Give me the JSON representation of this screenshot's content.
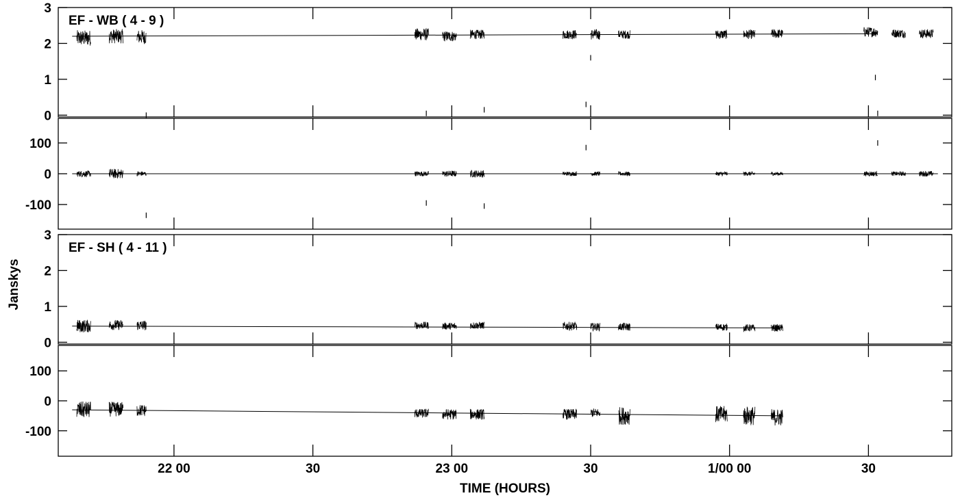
{
  "chart_data": {
    "type": "line",
    "xlabel": "TIME (HOURS)",
    "ylabel": "Janskys",
    "x_ticks": [
      {
        "t": 0,
        "label": "22 00"
      },
      {
        "t": 30,
        "label": "30"
      },
      {
        "t": 60,
        "label": "23 00"
      },
      {
        "t": 90,
        "label": "30"
      },
      {
        "t": 120,
        "label": "1/00 00"
      },
      {
        "t": 150,
        "label": "30"
      }
    ],
    "xlim": [
      -25,
      168
    ],
    "panels": [
      {
        "title": "EF - WB ( 4 - 9 )",
        "quantity": "amplitude",
        "ylim": [
          -0.05,
          3.0
        ],
        "yticks": [
          "0",
          "1",
          "2",
          "3"
        ],
        "model": {
          "t": [
            -22,
            152
          ],
          "y": [
            2.2,
            2.27
          ]
        },
        "scans": [
          {
            "t": [
              -21,
              -18
            ],
            "mean": 2.15,
            "noise": 0.22
          },
          {
            "t": [
              -14,
              -11
            ],
            "mean": 2.2,
            "noise": 0.2
          },
          {
            "t": [
              -8,
              -6
            ],
            "mean": 2.18,
            "noise": 0.2
          },
          {
            "t": [
              52,
              55
            ],
            "mean": 2.25,
            "noise": 0.17
          },
          {
            "t": [
              58,
              61
            ],
            "mean": 2.2,
            "noise": 0.15
          },
          {
            "t": [
              64,
              67
            ],
            "mean": 2.25,
            "noise": 0.13
          },
          {
            "t": [
              84,
              87
            ],
            "mean": 2.25,
            "noise": 0.13
          },
          {
            "t": [
              90,
              92
            ],
            "mean": 2.25,
            "noise": 0.15
          },
          {
            "t": [
              96,
              98.5
            ],
            "mean": 2.25,
            "noise": 0.12
          },
          {
            "t": [
              117,
              119.5
            ],
            "mean": 2.25,
            "noise": 0.13
          },
          {
            "t": [
              123,
              125.5
            ],
            "mean": 2.25,
            "noise": 0.13
          },
          {
            "t": [
              129,
              131.5
            ],
            "mean": 2.27,
            "noise": 0.13
          },
          {
            "t": [
              149,
              152
            ],
            "mean": 2.32,
            "noise": 0.14
          },
          {
            "t": [
              155,
              158
            ],
            "mean": 2.28,
            "noise": 0.12
          },
          {
            "t": [
              161,
              164
            ],
            "mean": 2.27,
            "noise": 0.13
          }
        ],
        "outliers": [
          {
            "t": -6,
            "y": 0.0
          },
          {
            "t": 54.5,
            "y": 0.05
          },
          {
            "t": 67,
            "y": 0.15
          },
          {
            "t": 89,
            "y": 0.3
          },
          {
            "t": 90,
            "y": 1.6
          },
          {
            "t": 151.5,
            "y": 1.05
          },
          {
            "t": 152,
            "y": 0.05
          }
        ]
      },
      {
        "title": "",
        "quantity": "phase",
        "ylim": [
          -180,
          180
        ],
        "yticks": [
          "100",
          "0",
          "-100"
        ],
        "ytick_values": [
          100,
          0,
          -100
        ],
        "model": {
          "t": [
            -22,
            165
          ],
          "y": [
            0,
            0
          ]
        },
        "scans": [
          {
            "t": [
              -21,
              -18
            ],
            "mean": 0,
            "noise": 10
          },
          {
            "t": [
              -14,
              -11
            ],
            "mean": 0,
            "noise": 16
          },
          {
            "t": [
              -8,
              -6
            ],
            "mean": 0,
            "noise": 8
          },
          {
            "t": [
              52,
              55
            ],
            "mean": 0,
            "noise": 8
          },
          {
            "t": [
              58,
              61
            ],
            "mean": 0,
            "noise": 10
          },
          {
            "t": [
              64,
              67
            ],
            "mean": 0,
            "noise": 12
          },
          {
            "t": [
              84,
              87
            ],
            "mean": 0,
            "noise": 7
          },
          {
            "t": [
              90,
              92
            ],
            "mean": 0,
            "noise": 7
          },
          {
            "t": [
              96,
              98.5
            ],
            "mean": 0,
            "noise": 7
          },
          {
            "t": [
              117,
              119.5
            ],
            "mean": 0,
            "noise": 7
          },
          {
            "t": [
              123,
              125.5
            ],
            "mean": 0,
            "noise": 7
          },
          {
            "t": [
              129,
              131.5
            ],
            "mean": 0,
            "noise": 6
          },
          {
            "t": [
              149,
              152
            ],
            "mean": 0,
            "noise": 8
          },
          {
            "t": [
              155,
              158
            ],
            "mean": 0,
            "noise": 7
          },
          {
            "t": [
              161,
              164
            ],
            "mean": 0,
            "noise": 9
          }
        ],
        "outliers": [
          {
            "t": -6,
            "y": -135
          },
          {
            "t": 54.5,
            "y": -95
          },
          {
            "t": 67,
            "y": -105
          },
          {
            "t": 89,
            "y": 85
          },
          {
            "t": 152,
            "y": 100
          }
        ]
      },
      {
        "title": "EF - SH ( 4 - 11 )",
        "quantity": "amplitude",
        "ylim": [
          -0.05,
          3.0
        ],
        "yticks": [
          "0",
          "1",
          "2",
          "3"
        ],
        "model": {
          "t": [
            -22,
            131.5
          ],
          "y": [
            0.45,
            0.4
          ]
        },
        "scans": [
          {
            "t": [
              -21,
              -18
            ],
            "mean": 0.45,
            "noise": 0.18
          },
          {
            "t": [
              -14,
              -11
            ],
            "mean": 0.48,
            "noise": 0.14
          },
          {
            "t": [
              -8,
              -6
            ],
            "mean": 0.47,
            "noise": 0.14
          },
          {
            "t": [
              52,
              55
            ],
            "mean": 0.47,
            "noise": 0.1
          },
          {
            "t": [
              58,
              61
            ],
            "mean": 0.45,
            "noise": 0.1
          },
          {
            "t": [
              64,
              67
            ],
            "mean": 0.47,
            "noise": 0.1
          },
          {
            "t": [
              84,
              87
            ],
            "mean": 0.45,
            "noise": 0.12
          },
          {
            "t": [
              90,
              92
            ],
            "mean": 0.43,
            "noise": 0.11
          },
          {
            "t": [
              96,
              98.5
            ],
            "mean": 0.43,
            "noise": 0.11
          },
          {
            "t": [
              117,
              119.5
            ],
            "mean": 0.42,
            "noise": 0.1
          },
          {
            "t": [
              123,
              125.5
            ],
            "mean": 0.4,
            "noise": 0.1
          },
          {
            "t": [
              129,
              131.5
            ],
            "mean": 0.4,
            "noise": 0.1
          }
        ],
        "outliers": []
      },
      {
        "title": "",
        "quantity": "phase",
        "ylim": [
          -185,
          185
        ],
        "yticks": [
          "100",
          "0",
          "-100"
        ],
        "ytick_values": [
          100,
          0,
          -100
        ],
        "model": {
          "t": [
            -22,
            131.5
          ],
          "y": [
            -30,
            -50
          ]
        },
        "scans": [
          {
            "t": [
              -21,
              -18
            ],
            "mean": -30,
            "noise": 28
          },
          {
            "t": [
              -14,
              -11
            ],
            "mean": -28,
            "noise": 25
          },
          {
            "t": [
              -8,
              -6
            ],
            "mean": -32,
            "noise": 20
          },
          {
            "t": [
              52,
              55
            ],
            "mean": -42,
            "noise": 15
          },
          {
            "t": [
              58,
              61
            ],
            "mean": -45,
            "noise": 18
          },
          {
            "t": [
              64,
              67
            ],
            "mean": -45,
            "noise": 18
          },
          {
            "t": [
              84,
              87
            ],
            "mean": -45,
            "noise": 18
          },
          {
            "t": [
              90,
              92
            ],
            "mean": -40,
            "noise": 15
          },
          {
            "t": [
              96,
              98.5
            ],
            "mean": -50,
            "noise": 30
          },
          {
            "t": [
              117,
              119.5
            ],
            "mean": -45,
            "noise": 28
          },
          {
            "t": [
              123,
              125.5
            ],
            "mean": -50,
            "noise": 32
          },
          {
            "t": [
              129,
              131.5
            ],
            "mean": -55,
            "noise": 28
          }
        ],
        "outliers": []
      }
    ]
  }
}
